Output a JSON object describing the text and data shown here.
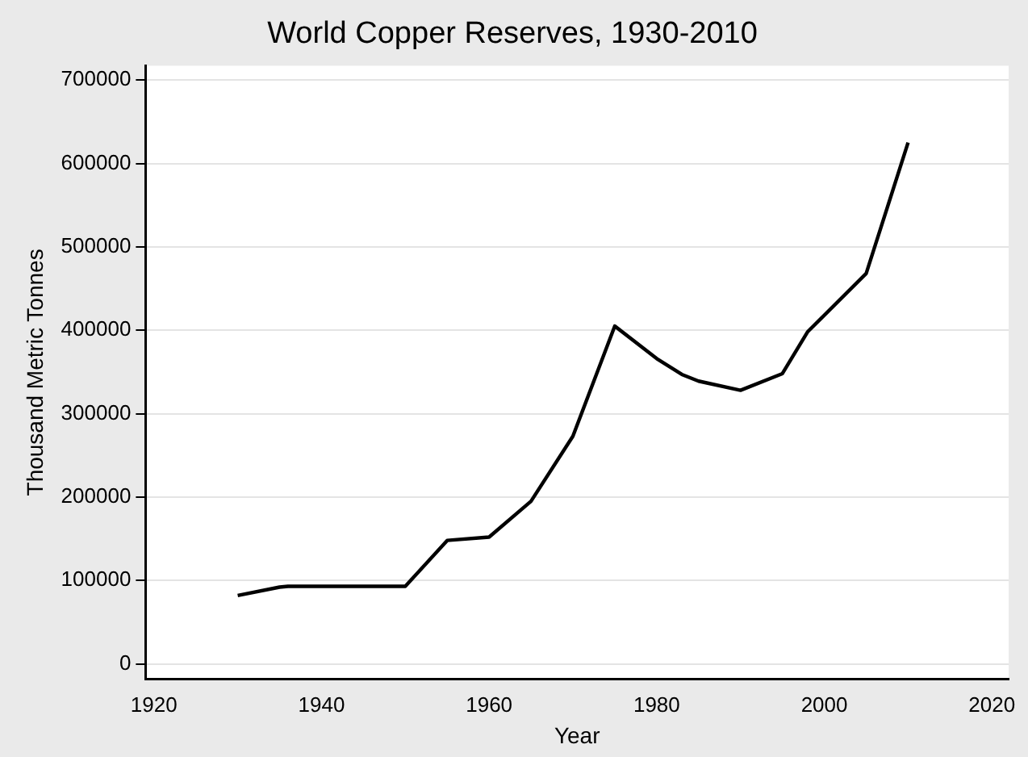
{
  "chart_data": {
    "type": "line",
    "title": "World Copper Reserves, 1930-2010",
    "xlabel": "Year",
    "ylabel": "Thousand Metric Tonnes",
    "x": [
      1930,
      1935,
      1936,
      1950,
      1955,
      1960,
      1965,
      1970,
      1975,
      1980,
      1983,
      1985,
      1990,
      1995,
      1998,
      2005,
      2010
    ],
    "series": [
      {
        "color": "#000000",
        "values": [
          82000,
          92000,
          93000,
          93000,
          148000,
          152000,
          195000,
          273000,
          405000,
          366000,
          347000,
          339000,
          328000,
          348000,
          398000,
          468000,
          625000
        ]
      }
    ],
    "xlim": [
      1919,
      2022
    ],
    "xticks": [
      1920,
      1940,
      1960,
      1980,
      2000,
      2020
    ],
    "ylim": [
      -18000,
      717000
    ],
    "yticks": [
      0,
      100000,
      200000,
      300000,
      400000,
      500000,
      600000,
      700000
    ],
    "grid": "y",
    "legend": false,
    "marker": "none",
    "line_style": "solid"
  }
}
